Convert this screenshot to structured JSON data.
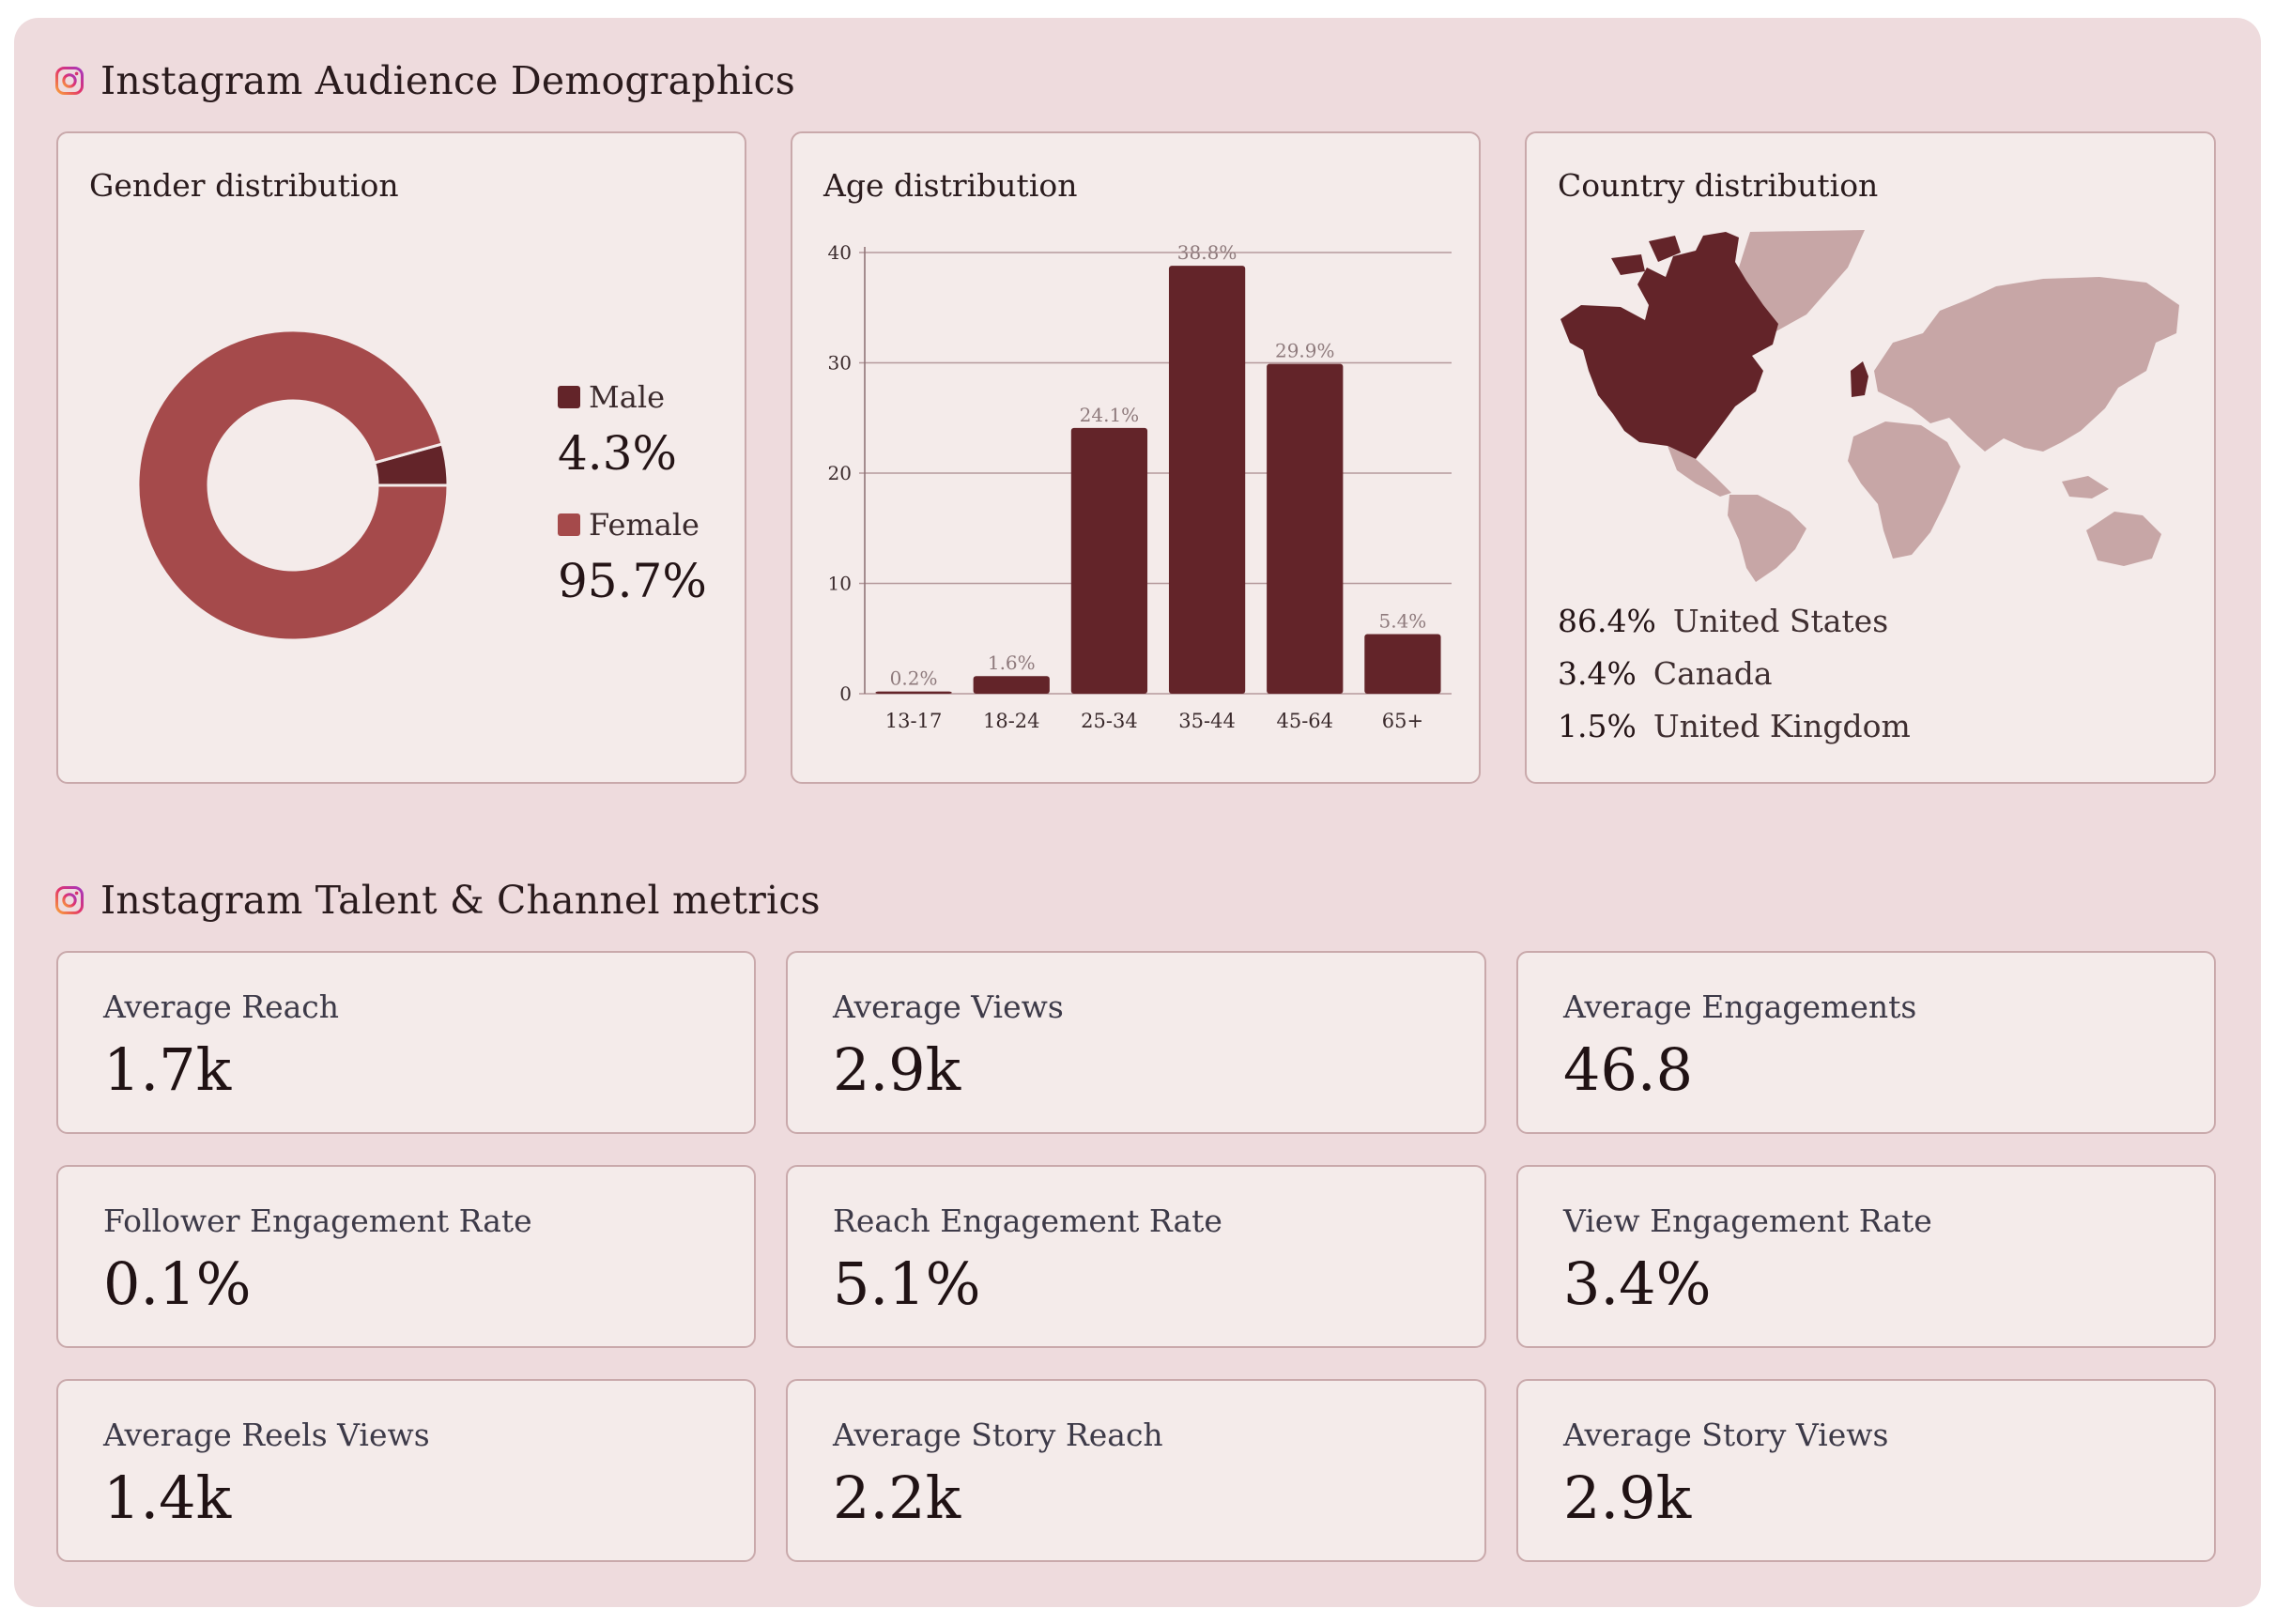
{
  "colors": {
    "page_bg": "#eedbdd",
    "card_bg": "#f4ebea",
    "male": "#632429",
    "female": "#a54a4b",
    "bar": "#632429",
    "map_land": "#c7a6a6",
    "map_highlight": "#632429"
  },
  "demographics": {
    "title": "Instagram Audience Demographics",
    "icon": "instagram-icon",
    "gender": {
      "title": "Gender distribution",
      "items": [
        {
          "label": "Male",
          "value": "4.3%"
        },
        {
          "label": "Female",
          "value": "95.7%"
        }
      ]
    },
    "age": {
      "title": "Age distribution"
    },
    "country": {
      "title": "Country distribution",
      "items": [
        {
          "pct": "86.4%",
          "name": "United States"
        },
        {
          "pct": "3.4%",
          "name": "Canada"
        },
        {
          "pct": "1.5%",
          "name": "United Kingdom"
        }
      ]
    }
  },
  "chart_data": [
    {
      "type": "pie",
      "title": "Gender distribution",
      "categories": [
        "Male",
        "Female"
      ],
      "values": [
        4.3,
        95.7
      ],
      "legend": "right"
    },
    {
      "type": "bar",
      "title": "Age distribution",
      "categories": [
        "13-17",
        "18-24",
        "25-34",
        "35-44",
        "45-64",
        "65+"
      ],
      "values": [
        0.2,
        1.6,
        24.1,
        38.8,
        29.9,
        5.4
      ],
      "data_labels": [
        "0.2%",
        "1.6%",
        "24.1%",
        "38.8%",
        "29.9%",
        "5.4%"
      ],
      "yticks": [
        0,
        10,
        20,
        30,
        40
      ],
      "ylim": [
        0,
        40
      ],
      "grid": true
    }
  ],
  "metrics_section": {
    "title": "Instagram Talent & Channel metrics",
    "icon": "instagram-icon",
    "metrics": [
      {
        "label": "Average Reach",
        "value": "1.7k"
      },
      {
        "label": "Average Views",
        "value": "2.9k"
      },
      {
        "label": "Average Engagements",
        "value": "46.8"
      },
      {
        "label": "Follower Engagement Rate",
        "value": "0.1%"
      },
      {
        "label": "Reach Engagement Rate",
        "value": "5.1%"
      },
      {
        "label": "View Engagement Rate",
        "value": "3.4%"
      },
      {
        "label": "Average Reels Views",
        "value": "1.4k"
      },
      {
        "label": "Average Story Reach",
        "value": "2.2k"
      },
      {
        "label": "Average Story Views",
        "value": "2.9k"
      }
    ]
  }
}
